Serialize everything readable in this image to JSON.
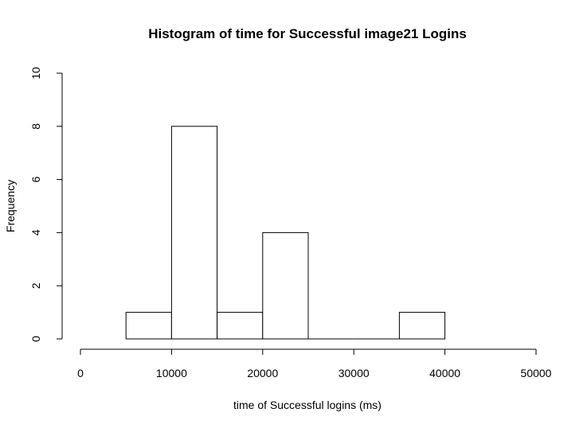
{
  "chart_data": {
    "type": "bar",
    "title": "Histogram of time for Successful image21 Logins",
    "xlabel": "time of Successful logins (ms)",
    "ylabel": "Frequency",
    "xlim": [
      0,
      50000
    ],
    "ylim": [
      0,
      10
    ],
    "x_ticks": [
      0,
      10000,
      20000,
      30000,
      40000,
      50000
    ],
    "y_ticks": [
      0,
      2,
      4,
      6,
      8,
      10
    ],
    "bins": [
      {
        "start": 5000,
        "end": 10000,
        "count": 1
      },
      {
        "start": 10000,
        "end": 15000,
        "count": 8
      },
      {
        "start": 15000,
        "end": 20000,
        "count": 1
      },
      {
        "start": 20000,
        "end": 25000,
        "count": 4
      },
      {
        "start": 25000,
        "end": 30000,
        "count": 0
      },
      {
        "start": 30000,
        "end": 35000,
        "count": 0
      },
      {
        "start": 35000,
        "end": 40000,
        "count": 1
      }
    ],
    "grid": false,
    "legend": "none",
    "bar_fill": "#ffffff",
    "bar_stroke": "#000000"
  }
}
